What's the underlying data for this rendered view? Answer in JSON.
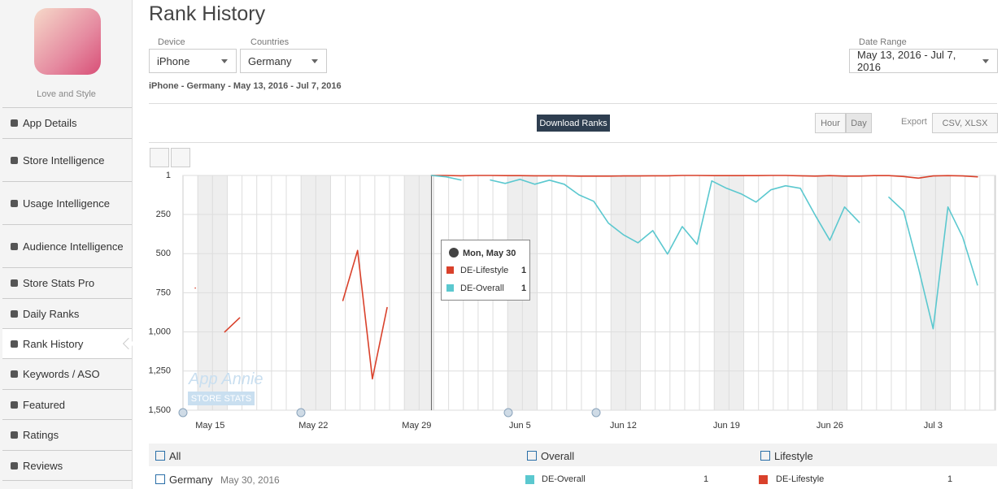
{
  "sidebar": {
    "app_name": "Love and Style",
    "items": [
      "App Details",
      "Store Intelligence",
      "Usage Intelligence",
      "Audience Intelligence",
      "Store Stats Pro",
      "Daily Ranks",
      "Rank History",
      "Keywords / ASO",
      "Featured",
      "Ratings",
      "Reviews"
    ]
  },
  "header": {
    "title": "Rank History",
    "device_label": "Device",
    "device": "iPhone",
    "countries_label": "Countries",
    "country": "Germany",
    "date_range_label": "Date Range",
    "date_range": "May 13, 2016 - Jul 7, 2016",
    "subtitle": "iPhone - Germany - May 13, 2016 - Jul 7, 2016"
  },
  "toolbar": {
    "download": "Download Ranks",
    "hour": "Hour",
    "day": "Day",
    "export": "Export",
    "formats": "CSV, XLSX"
  },
  "watermark": {
    "brand": "App Annie",
    "product": "STORE STATS"
  },
  "chart": {
    "type": "line",
    "inverted": true,
    "grid": true,
    "categories": [
      null,
      null,
      "May 15",
      null,
      null,
      null,
      null,
      null,
      null,
      "May 22",
      null,
      null,
      null,
      null,
      null,
      null,
      "May 29",
      null,
      null,
      null,
      null,
      null,
      null,
      "Jun 5",
      null,
      null,
      null,
      null,
      null,
      null,
      "Jun 12",
      null,
      null,
      null,
      null,
      null,
      null,
      "Jun 19",
      null,
      null,
      null,
      null,
      null,
      null,
      "Jun 26",
      null,
      null,
      null,
      null,
      null,
      null,
      "Jul 3",
      null,
      null,
      null,
      null
    ],
    "ylim": [
      1,
      1500
    ],
    "yticks": [
      1,
      250,
      500,
      750,
      {
        "value": 1000,
        "label": "1,000"
      },
      {
        "value": 1250,
        "label": "1,250"
      },
      {
        "value": 1500,
        "label": "1,500"
      }
    ],
    "series": [
      {
        "name": "DE-Lifestyle",
        "color": "#d9412b",
        "values": [
          null,
          720,
          null,
          1000,
          910,
          null,
          null,
          null,
          null,
          null,
          null,
          800,
          480,
          1300,
          845,
          null,
          null,
          1,
          1,
          3,
          1,
          1,
          2,
          2,
          3,
          3,
          3,
          5,
          5,
          5,
          4,
          4,
          3,
          3,
          1,
          1,
          2,
          2,
          2,
          2,
          1,
          1,
          3,
          5,
          2,
          5,
          5,
          2,
          2,
          8,
          18,
          4,
          2,
          4,
          10,
          null
        ]
      },
      {
        "name": "DE-Overall",
        "color": "#5bc8cf",
        "values": [
          null,
          null,
          null,
          null,
          null,
          null,
          null,
          null,
          null,
          null,
          null,
          null,
          null,
          null,
          null,
          null,
          null,
          1,
          10,
          30,
          null,
          30,
          52,
          26,
          57,
          31,
          57,
          125,
          166,
          306,
          379,
          431,
          353,
          503,
          327,
          441,
          36,
          83,
          119,
          171,
          93,
          67,
          83,
          254,
          415,
          202,
          301,
          null,
          140,
          228,
          591,
          980,
          202,
          394,
          700,
          null
        ]
      }
    ]
  },
  "tooltip": {
    "title": "Mon, May 30",
    "rows": [
      {
        "name": "DE-Lifestyle",
        "value": 1
      },
      {
        "name": "DE-Overall",
        "value": 1
      }
    ]
  },
  "table": {
    "header": [
      "All",
      "Overall",
      "Lifestyle"
    ],
    "rows": [
      [
        "Germany",
        "May 30, 2016",
        "DE-Overall",
        1,
        "DE-Lifestyle",
        1
      ]
    ]
  }
}
